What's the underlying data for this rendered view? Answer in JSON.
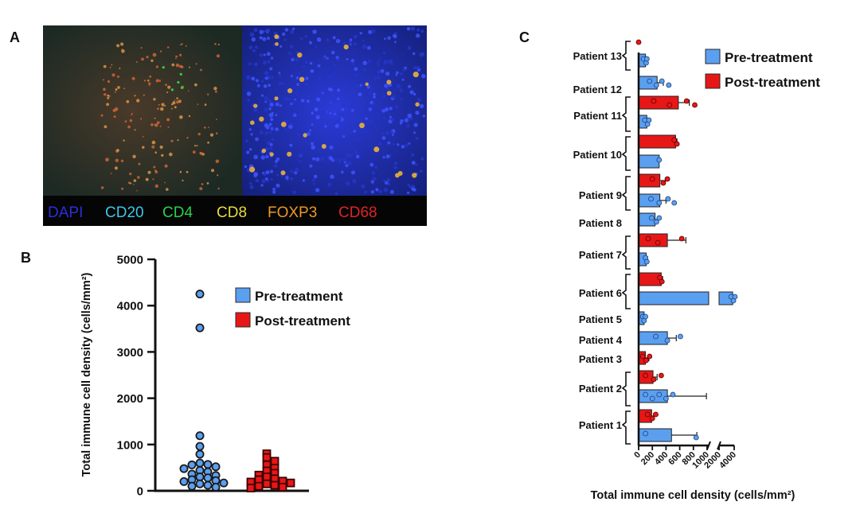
{
  "panels": {
    "a": "A",
    "b": "B",
    "c": "C"
  },
  "colors": {
    "pre": "#5b9ff0",
    "pre_dark": "#2c64c4",
    "post": "#e81717",
    "post_dark": "#8a0b0b"
  },
  "micrograph": {
    "stains": [
      {
        "name": "DAPI",
        "color": "#2a2ee0"
      },
      {
        "name": "CD20",
        "color": "#3cc8e6"
      },
      {
        "name": "CD4",
        "color": "#2ad14a"
      },
      {
        "name": "CD8",
        "color": "#e8dd3a"
      },
      {
        "name": "FOXP3",
        "color": "#f0962a"
      },
      {
        "name": "CD68",
        "color": "#e02424"
      }
    ]
  },
  "legend": {
    "pre": "Pre-treatment",
    "post": "Post-treatment"
  },
  "chart_data": [
    {
      "panel": "B",
      "type": "scatter",
      "ylabel": "Total immune cell density (cells/mm²)",
      "ylim": [
        0,
        5000
      ],
      "yticks": [
        0,
        1000,
        2000,
        3000,
        4000,
        5000
      ],
      "series": [
        {
          "name": "Pre-treatment",
          "marker": "circle",
          "values": [
            4250,
            3520,
            1190,
            960,
            790,
            600,
            570,
            560,
            520,
            480,
            440,
            410,
            360,
            330,
            300,
            280,
            240,
            220,
            200,
            170,
            150,
            120,
            100,
            80
          ]
        },
        {
          "name": "Post-treatment",
          "marker": "square",
          "values": [
            800,
            720,
            640,
            560,
            490,
            430,
            380,
            340,
            300,
            260,
            240,
            210,
            190,
            170,
            150,
            120,
            100,
            80,
            60
          ]
        }
      ]
    },
    {
      "panel": "C",
      "type": "bar",
      "orientation": "horizontal",
      "xlabel": "Total immune cell density (cells/mm²)",
      "xticks_low": [
        "0",
        "200",
        "400",
        "600",
        "800",
        "1000"
      ],
      "xticks_high": [
        "2000",
        "4000"
      ],
      "axis_break": [
        1000,
        2000
      ],
      "patients": [
        {
          "label": "Patient 13",
          "pre": {
            "mean": 100,
            "err": 30,
            "pts": [
              70,
              110,
              120
            ]
          },
          "post": {
            "mean": 0,
            "err": 0,
            "pts": [
              0
            ]
          }
        },
        {
          "label": "Patient 12",
          "pre": {
            "mean": 270,
            "err": 90,
            "pts": [
              160,
              260,
              340,
              440
            ]
          },
          "post": null
        },
        {
          "label": "Patient 11",
          "pre": {
            "mean": 120,
            "err": 30,
            "pts": [
              90,
              130,
              150
            ]
          },
          "post": {
            "mean": 580,
            "err": 160,
            "pts": [
              220,
              450,
              700,
              820
            ]
          }
        },
        {
          "label": "Patient 10",
          "pre": {
            "mean": 300,
            "err": 0,
            "pts": [
              300
            ]
          },
          "post": {
            "mean": 540,
            "err": 20,
            "pts": [
              520,
              560
            ]
          }
        },
        {
          "label": "Patient 9",
          "pre": {
            "mean": 310,
            "err": 90,
            "pts": [
              180,
              300,
              430,
              520
            ]
          },
          "post": {
            "mean": 310,
            "err": 80,
            "pts": [
              200,
              360,
              420
            ]
          }
        },
        {
          "label": "Patient 8",
          "pre": {
            "mean": 240,
            "err": 50,
            "pts": [
              190,
              260,
              300
            ]
          },
          "post": null
        },
        {
          "label": "Patient 7",
          "pre": {
            "mean": 110,
            "err": 20,
            "pts": [
              100,
              120
            ]
          },
          "post": {
            "mean": 420,
            "err": 270,
            "pts": [
              140,
              280,
              630
            ]
          }
        },
        {
          "label": "Patient 6",
          "pre": {
            "mean": 3800,
            "err": 300,
            "pts": [
              3600,
              3900,
              4100
            ]
          },
          "post": {
            "mean": 330,
            "err": 20,
            "pts": [
              310,
              340
            ]
          }
        },
        {
          "label": "Patient 5",
          "pre": {
            "mean": 80,
            "err": 20,
            "pts": [
              60,
              80,
              100
            ]
          },
          "post": null
        },
        {
          "label": "Patient 4",
          "pre": {
            "mean": 420,
            "err": 130,
            "pts": [
              250,
              420,
              610
            ]
          },
          "post": null
        },
        {
          "label": "Patient 3",
          "pre": null,
          "post": {
            "mean": 100,
            "err": 50,
            "pts": [
              60,
              110,
              160
            ]
          }
        },
        {
          "label": "Patient 2",
          "pre": {
            "mean": 420,
            "err": 570,
            "pts": [
              100,
              200,
              300,
              400,
              500
            ]
          },
          "post": {
            "mean": 210,
            "err": 60,
            "pts": [
              100,
              220,
              330
            ]
          }
        },
        {
          "label": "Patient 1",
          "pre": {
            "mean": 480,
            "err": 370,
            "pts": [
              100,
              840
            ]
          },
          "post": {
            "mean": 190,
            "err": 30,
            "pts": [
              130,
              200,
              250
            ]
          }
        }
      ]
    }
  ]
}
